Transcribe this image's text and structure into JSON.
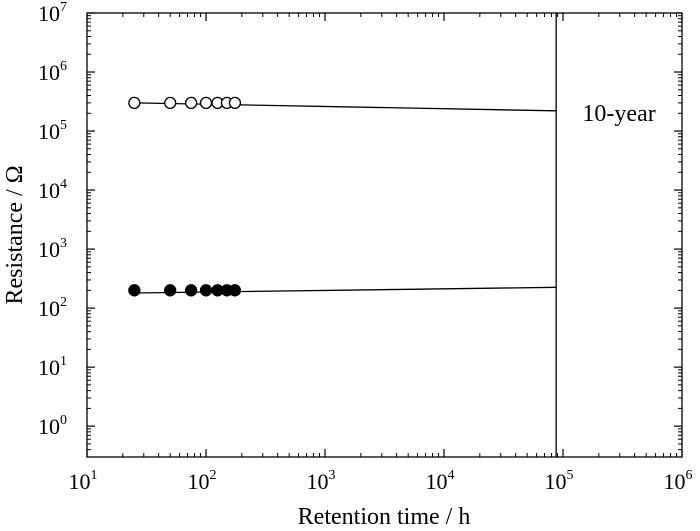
{
  "chart_data": {
    "type": "scatter",
    "xlabel": "Retention time / h",
    "ylabel": "Resistance / Ω",
    "x_scale": "log",
    "y_scale": "log",
    "xlim": [
      10,
      1000000
    ],
    "ylim": [
      0.3,
      10000000
    ],
    "x_ticks": [
      {
        "base": "10",
        "exp": "1",
        "value": 10
      },
      {
        "base": "10",
        "exp": "2",
        "value": 100
      },
      {
        "base": "10",
        "exp": "3",
        "value": 1000
      },
      {
        "base": "10",
        "exp": "4",
        "value": 10000
      },
      {
        "base": "10",
        "exp": "5",
        "value": 100000
      },
      {
        "base": "10",
        "exp": "6",
        "value": 1000000
      }
    ],
    "y_ticks": [
      {
        "base": "10",
        "exp": "0",
        "value": 1
      },
      {
        "base": "10",
        "exp": "1",
        "value": 10
      },
      {
        "base": "10",
        "exp": "2",
        "value": 100
      },
      {
        "base": "10",
        "exp": "3",
        "value": 1000
      },
      {
        "base": "10",
        "exp": "4",
        "value": 10000
      },
      {
        "base": "10",
        "exp": "5",
        "value": 100000
      },
      {
        "base": "10",
        "exp": "6",
        "value": 1000000
      },
      {
        "base": "10",
        "exp": "7",
        "value": 10000000
      }
    ],
    "series": [
      {
        "marker": "open-circle",
        "x": [
          25,
          50,
          75,
          100,
          125,
          150,
          175
        ],
        "y": [
          300000,
          300000,
          300000,
          300000,
          300000,
          300000,
          300000
        ],
        "fit": {
          "x": [
            25,
            87600
          ],
          "y": [
            300000,
            220000
          ]
        }
      },
      {
        "marker": "filled-circle",
        "x": [
          25,
          50,
          75,
          100,
          125,
          150,
          175
        ],
        "y": [
          200,
          200,
          200,
          200,
          200,
          200,
          200
        ],
        "fit": {
          "x": [
            25,
            87600
          ],
          "y": [
            180,
            225
          ]
        }
      }
    ],
    "reference_line": {
      "x": 87600,
      "label": "10-year"
    },
    "grid": false,
    "legend": "none"
  }
}
